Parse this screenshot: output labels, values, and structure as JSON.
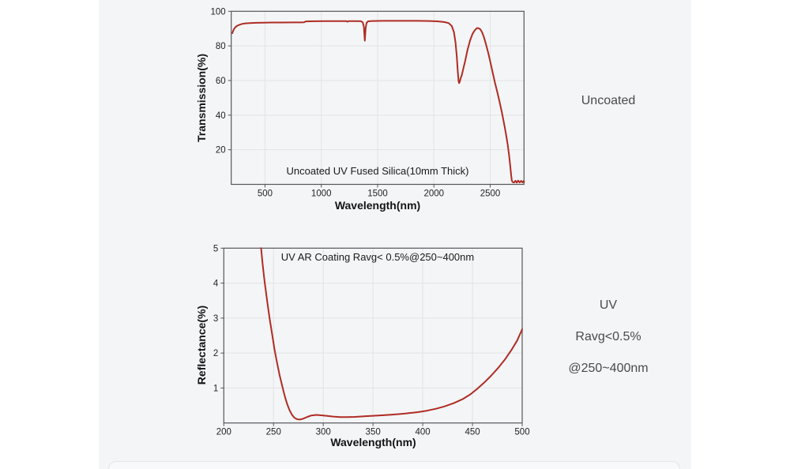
{
  "side_labels": {
    "uncoated": "Uncoated",
    "uv_title": "UV",
    "uv_ravg": "Ravg<0.5%",
    "uv_range": "@250~400nm"
  },
  "chart_data": [
    {
      "type": "line",
      "title": "Uncoated UV Fused Silica(10mm Thick)",
      "xlabel": "Wavelength(nm)",
      "ylabel": "Transmission(%)",
      "xlim": [
        200,
        2800
      ],
      "ylim": [
        0,
        100
      ],
      "xticks": [
        500,
        1000,
        1500,
        2000,
        2500
      ],
      "yticks": [
        20,
        40,
        60,
        80,
        100
      ],
      "grid": true,
      "legend_position": "none",
      "line_color": "#ae2c24",
      "series": [
        {
          "name": "Uncoated UV Fused Silica (10mm thick)",
          "points": [
            [
              210,
              87.3
            ],
            [
              218,
              88.9
            ],
            [
              228,
              90.1
            ],
            [
              240,
              91.0
            ],
            [
              255,
              91.7
            ],
            [
              272,
              92.2
            ],
            [
              295,
              92.7
            ],
            [
              325,
              93.0
            ],
            [
              365,
              93.2
            ],
            [
              420,
              93.35
            ],
            [
              480,
              93.45
            ],
            [
              560,
              93.5
            ],
            [
              650,
              93.5
            ],
            [
              750,
              93.55
            ],
            [
              845,
              93.6
            ],
            [
              852,
              93.8
            ],
            [
              862,
              94.15
            ],
            [
              940,
              94.25
            ],
            [
              1030,
              94.3
            ],
            [
              1120,
              94.35
            ],
            [
              1222,
              94.35
            ],
            [
              1232,
              94.0
            ],
            [
              1242,
              94.35
            ],
            [
              1310,
              94.35
            ],
            [
              1352,
              94.25
            ],
            [
              1368,
              93.6
            ],
            [
              1378,
              91.0
            ],
            [
              1386,
              83.0
            ],
            [
              1394,
              90.5
            ],
            [
              1402,
              93.3
            ],
            [
              1415,
              94.2
            ],
            [
              1450,
              94.4
            ],
            [
              1550,
              94.5
            ],
            [
              1700,
              94.5
            ],
            [
              1850,
              94.5
            ],
            [
              1960,
              94.4
            ],
            [
              2030,
              94.2
            ],
            [
              2090,
              93.8
            ],
            [
              2130,
              93.2
            ],
            [
              2158,
              91.5
            ],
            [
              2178,
              88.0
            ],
            [
              2192,
              82.0
            ],
            [
              2203,
              74.0
            ],
            [
              2212,
              65.0
            ],
            [
              2219,
              59.5
            ],
            [
              2224,
              58.5
            ],
            [
              2230,
              59.5
            ],
            [
              2238,
              61.5
            ],
            [
              2247,
              63.0
            ],
            [
              2260,
              66.5
            ],
            [
              2278,
              71.5
            ],
            [
              2298,
              77.5
            ],
            [
              2320,
              83.0
            ],
            [
              2342,
              86.8
            ],
            [
              2362,
              89.0
            ],
            [
              2382,
              90.3
            ],
            [
              2398,
              90.2
            ],
            [
              2412,
              89.6
            ],
            [
              2428,
              87.8
            ],
            [
              2444,
              85.0
            ],
            [
              2462,
              81.0
            ],
            [
              2482,
              76.0
            ],
            [
              2502,
              70.5
            ],
            [
              2522,
              64.5
            ],
            [
              2542,
              58.8
            ],
            [
              2562,
              53.5
            ],
            [
              2582,
              48.0
            ],
            [
              2602,
              42.0
            ],
            [
              2622,
              35.5
            ],
            [
              2640,
              29.0
            ],
            [
              2656,
              22.5
            ],
            [
              2668,
              16.5
            ],
            [
              2678,
              10.5
            ],
            [
              2686,
              5.0
            ],
            [
              2692,
              2.2
            ],
            [
              2700,
              1.3
            ],
            [
              2712,
              1.1
            ],
            [
              2724,
              2.1
            ],
            [
              2736,
              1.0
            ],
            [
              2748,
              2.2
            ],
            [
              2762,
              1.1
            ],
            [
              2775,
              2.0
            ],
            [
              2788,
              1.1
            ],
            [
              2796,
              1.9
            ],
            [
              2800,
              1.4
            ]
          ]
        }
      ]
    },
    {
      "type": "line",
      "title": "UV AR Coating Ravg< 0.5%@250~400nm",
      "xlabel": "Wavelength(nm)",
      "ylabel": "Reflectance(%)",
      "xlim": [
        200,
        500
      ],
      "ylim": [
        0,
        5
      ],
      "xticks": [
        200,
        250,
        300,
        350,
        400,
        450,
        500
      ],
      "yticks": [
        1,
        2,
        3,
        4,
        5
      ],
      "grid": true,
      "legend_position": "none",
      "line_color": "#ae2c24",
      "series": [
        {
          "name": "UV AR Coating",
          "points": [
            [
              237.5,
              5.0
            ],
            [
              239,
              4.55
            ],
            [
              241,
              4.05
            ],
            [
              243.5,
              3.5
            ],
            [
              246,
              3.0
            ],
            [
              248.5,
              2.55
            ],
            [
              251,
              2.1
            ],
            [
              253.5,
              1.72
            ],
            [
              256,
              1.38
            ],
            [
              258.5,
              1.08
            ],
            [
              261,
              0.8
            ],
            [
              263.5,
              0.56
            ],
            [
              266,
              0.37
            ],
            [
              268.5,
              0.24
            ],
            [
              271,
              0.15
            ],
            [
              274,
              0.105
            ],
            [
              277,
              0.1
            ],
            [
              280,
              0.125
            ],
            [
              284,
              0.175
            ],
            [
              288,
              0.215
            ],
            [
              293,
              0.23
            ],
            [
              298,
              0.22
            ],
            [
              304,
              0.2
            ],
            [
              310,
              0.182
            ],
            [
              317,
              0.168
            ],
            [
              324,
              0.166
            ],
            [
              332,
              0.175
            ],
            [
              341,
              0.19
            ],
            [
              350,
              0.205
            ],
            [
              359,
              0.22
            ],
            [
              368,
              0.235
            ],
            [
              377,
              0.255
            ],
            [
              386,
              0.28
            ],
            [
              395,
              0.31
            ],
            [
              404,
              0.35
            ],
            [
              413,
              0.405
            ],
            [
              422,
              0.475
            ],
            [
              431,
              0.565
            ],
            [
              440,
              0.68
            ],
            [
              448,
              0.82
            ],
            [
              455,
              0.98
            ],
            [
              462,
              1.16
            ],
            [
              469,
              1.36
            ],
            [
              476,
              1.58
            ],
            [
              483,
              1.83
            ],
            [
              489,
              2.08
            ],
            [
              495,
              2.36
            ],
            [
              500,
              2.68
            ]
          ]
        }
      ]
    }
  ]
}
